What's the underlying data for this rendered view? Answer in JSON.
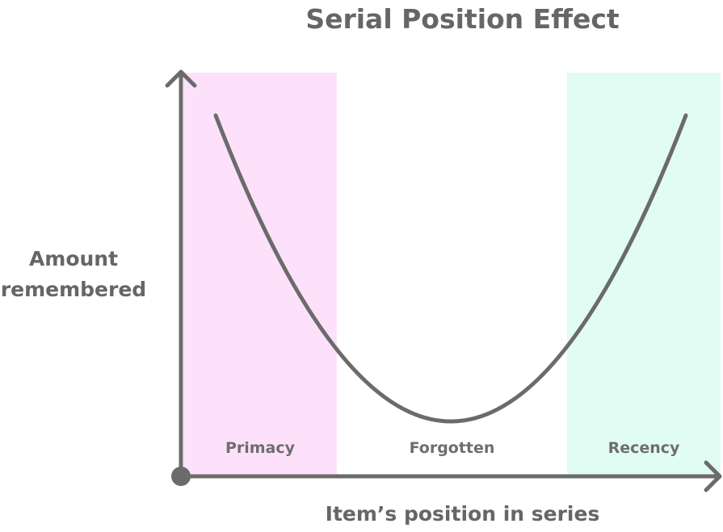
{
  "title": "Serial Position Effect",
  "y_axis_label_line1": "Amount",
  "y_axis_label_line2": "remembered",
  "x_axis_label": "Item’s position in series",
  "regions": [
    {
      "label": "Primacy",
      "color": "#FDE1FB"
    },
    {
      "label": "Forgotten",
      "color": "#FFFFFF"
    },
    {
      "label": "Recency",
      "color": "#E0FCF3"
    }
  ],
  "line_color": "#6B6B6B",
  "curve_shape": "U-shaped: high at start and end of series, lowest in middle"
}
